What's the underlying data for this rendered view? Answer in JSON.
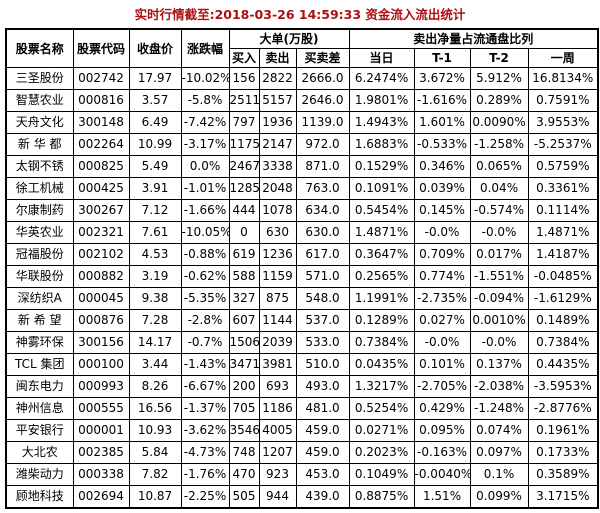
{
  "title": "实时行情截至:2018-03-26 14:59:33 资金流入流出统计",
  "colors": {
    "title": "#aa1111",
    "link": "#16639c",
    "border": "#000000",
    "background": "#ffffff"
  },
  "table": {
    "headers": {
      "stock_name": "股票名称",
      "stock_code": "股票代码",
      "close_price": "收盘价",
      "change_pct": "涨跌幅",
      "big_orders_group": "大单(万股)",
      "buy": "买入",
      "sell": "卖出",
      "buy_sell_diff": "买卖差",
      "net_sell_group": "卖出净量占流通盘比列",
      "day": "当日",
      "t1": "T-1",
      "t2": "T-2",
      "week": "一周"
    },
    "rows": [
      {
        "name": "三圣股份",
        "code": "002742",
        "close": "17.97",
        "change": "-10.02%",
        "buy": "156",
        "sell": "2822",
        "diff": "2666.0",
        "day": "6.2474%",
        "t1": "3.672%",
        "t2": "5.912%",
        "week": "16.8134%"
      },
      {
        "name": "智慧农业",
        "code": "000816",
        "close": "3.57",
        "change": "-5.8%",
        "buy": "2511",
        "sell": "5157",
        "diff": "2646.0",
        "day": "1.9801%",
        "t1": "-1.616%",
        "t2": "0.289%",
        "week": "0.7591%"
      },
      {
        "name": "天舟文化",
        "code": "300148",
        "close": "6.49",
        "change": "-7.42%",
        "buy": "797",
        "sell": "1936",
        "diff": "1139.0",
        "day": "1.4943%",
        "t1": "1.601%",
        "t2": "0.0090%",
        "week": "3.9553%"
      },
      {
        "name": "新 华 都",
        "code": "002264",
        "close": "10.99",
        "change": "-3.17%",
        "buy": "1175",
        "sell": "2147",
        "diff": "972.0",
        "day": "1.6883%",
        "t1": "-0.533%",
        "t2": "-1.258%",
        "week": "-5.2537%"
      },
      {
        "name": "太钢不锈",
        "code": "000825",
        "close": "5.49",
        "change": "0.0%",
        "buy": "2467",
        "sell": "3338",
        "diff": "871.0",
        "day": "0.1529%",
        "t1": "0.346%",
        "t2": "0.065%",
        "week": "0.5759%"
      },
      {
        "name": "徐工机械",
        "code": "000425",
        "close": "3.91",
        "change": "-1.01%",
        "buy": "1285",
        "sell": "2048",
        "diff": "763.0",
        "day": "0.1091%",
        "t1": "0.039%",
        "t2": "0.04%",
        "week": "0.3361%"
      },
      {
        "name": "尔康制药",
        "code": "300267",
        "close": "7.12",
        "change": "-1.66%",
        "buy": "444",
        "sell": "1078",
        "diff": "634.0",
        "day": "0.5454%",
        "t1": "0.145%",
        "t2": "-0.574%",
        "week": "0.1114%"
      },
      {
        "name": "华英农业",
        "code": "002321",
        "close": "7.61",
        "change": "-10.05%",
        "buy": "0",
        "sell": "630",
        "diff": "630.0",
        "day": "1.4871%",
        "t1": "-0.0%",
        "t2": "-0.0%",
        "week": "1.4871%"
      },
      {
        "name": "冠福股份",
        "code": "002102",
        "close": "4.53",
        "change": "-0.88%",
        "buy": "619",
        "sell": "1236",
        "diff": "617.0",
        "day": "0.3647%",
        "t1": "0.709%",
        "t2": "0.017%",
        "week": "1.4187%"
      },
      {
        "name": "华联股份",
        "code": "000882",
        "close": "3.19",
        "change": "-0.62%",
        "buy": "588",
        "sell": "1159",
        "diff": "571.0",
        "day": "0.2565%",
        "t1": "0.774%",
        "t2": "-1.551%",
        "week": "-0.0485%"
      },
      {
        "name": "深纺织A",
        "code": "000045",
        "close": "9.38",
        "change": "-5.35%",
        "buy": "327",
        "sell": "875",
        "diff": "548.0",
        "day": "1.1991%",
        "t1": "-2.735%",
        "t2": "-0.094%",
        "week": "-1.6129%"
      },
      {
        "name": "新 希 望",
        "code": "000876",
        "close": "7.28",
        "change": "-2.8%",
        "buy": "607",
        "sell": "1144",
        "diff": "537.0",
        "day": "0.1289%",
        "t1": "0.027%",
        "t2": "0.0010%",
        "week": "0.1489%"
      },
      {
        "name": "神雾环保",
        "code": "300156",
        "close": "14.17",
        "change": "-0.7%",
        "buy": "1506",
        "sell": "2039",
        "diff": "533.0",
        "day": "0.7384%",
        "t1": "-0.0%",
        "t2": "-0.0%",
        "week": "0.7384%"
      },
      {
        "name": "TCL 集团",
        "code": "000100",
        "close": "3.44",
        "change": "-1.43%",
        "buy": "3471",
        "sell": "3981",
        "diff": "510.0",
        "day": "0.0435%",
        "t1": "0.101%",
        "t2": "0.137%",
        "week": "0.4435%"
      },
      {
        "name": "闽东电力",
        "code": "000993",
        "close": "8.26",
        "change": "-6.67%",
        "buy": "200",
        "sell": "693",
        "diff": "493.0",
        "day": "1.3217%",
        "t1": "-2.705%",
        "t2": "-2.038%",
        "week": "-3.5953%"
      },
      {
        "name": "神州信息",
        "code": "000555",
        "close": "16.56",
        "change": "-1.37%",
        "buy": "705",
        "sell": "1186",
        "diff": "481.0",
        "day": "0.5254%",
        "t1": "0.429%",
        "t2": "-1.248%",
        "week": "-2.8776%"
      },
      {
        "name": "平安银行",
        "code": "000001",
        "close": "10.93",
        "change": "-3.62%",
        "buy": "3546",
        "sell": "4005",
        "diff": "459.0",
        "day": "0.0271%",
        "t1": "0.095%",
        "t2": "0.074%",
        "week": "0.1961%"
      },
      {
        "name": "大北农",
        "code": "002385",
        "close": "5.84",
        "change": "-4.73%",
        "buy": "748",
        "sell": "1207",
        "diff": "459.0",
        "day": "0.2023%",
        "t1": "-0.163%",
        "t2": "0.097%",
        "week": "0.1733%"
      },
      {
        "name": "潍柴动力",
        "code": "000338",
        "close": "7.82",
        "change": "-1.76%",
        "buy": "470",
        "sell": "923",
        "diff": "453.0",
        "day": "0.1049%",
        "t1": "-0.0040%",
        "t2": "0.1%",
        "week": "0.3589%"
      },
      {
        "name": "顾地科技",
        "code": "002694",
        "close": "10.87",
        "change": "-2.25%",
        "buy": "505",
        "sell": "944",
        "diff": "439.0",
        "day": "0.8875%",
        "t1": "1.51%",
        "t2": "0.099%",
        "week": "3.1715%"
      }
    ]
  }
}
